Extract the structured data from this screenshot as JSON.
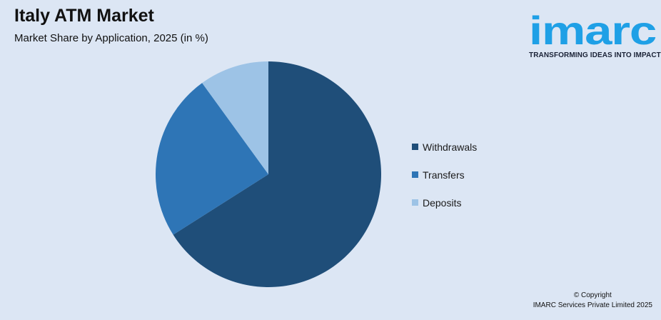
{
  "header": {
    "title": "Italy ATM Market",
    "subtitle": "Market Share by Application, 2025 (in %)"
  },
  "logo": {
    "wordmark": "imarc",
    "tagline": "TRANSFORMING IDEAS INTO IMPACT",
    "colors": {
      "wordmark": "#1fa0e6",
      "tagline": "#1a2236"
    }
  },
  "chart_data": {
    "type": "pie",
    "categories": [
      "Withdrawals",
      "Transfers",
      "Deposits"
    ],
    "values": [
      66,
      24,
      10
    ],
    "colors": [
      "#1f4e79",
      "#2e75b6",
      "#9dc3e6"
    ],
    "start_angle_deg": 0,
    "direction": "clockwise",
    "legend_position": "right"
  },
  "footer": {
    "copyright_line1": "© Copyright",
    "copyright_line2": "IMARC Services Private Limited 2025"
  }
}
